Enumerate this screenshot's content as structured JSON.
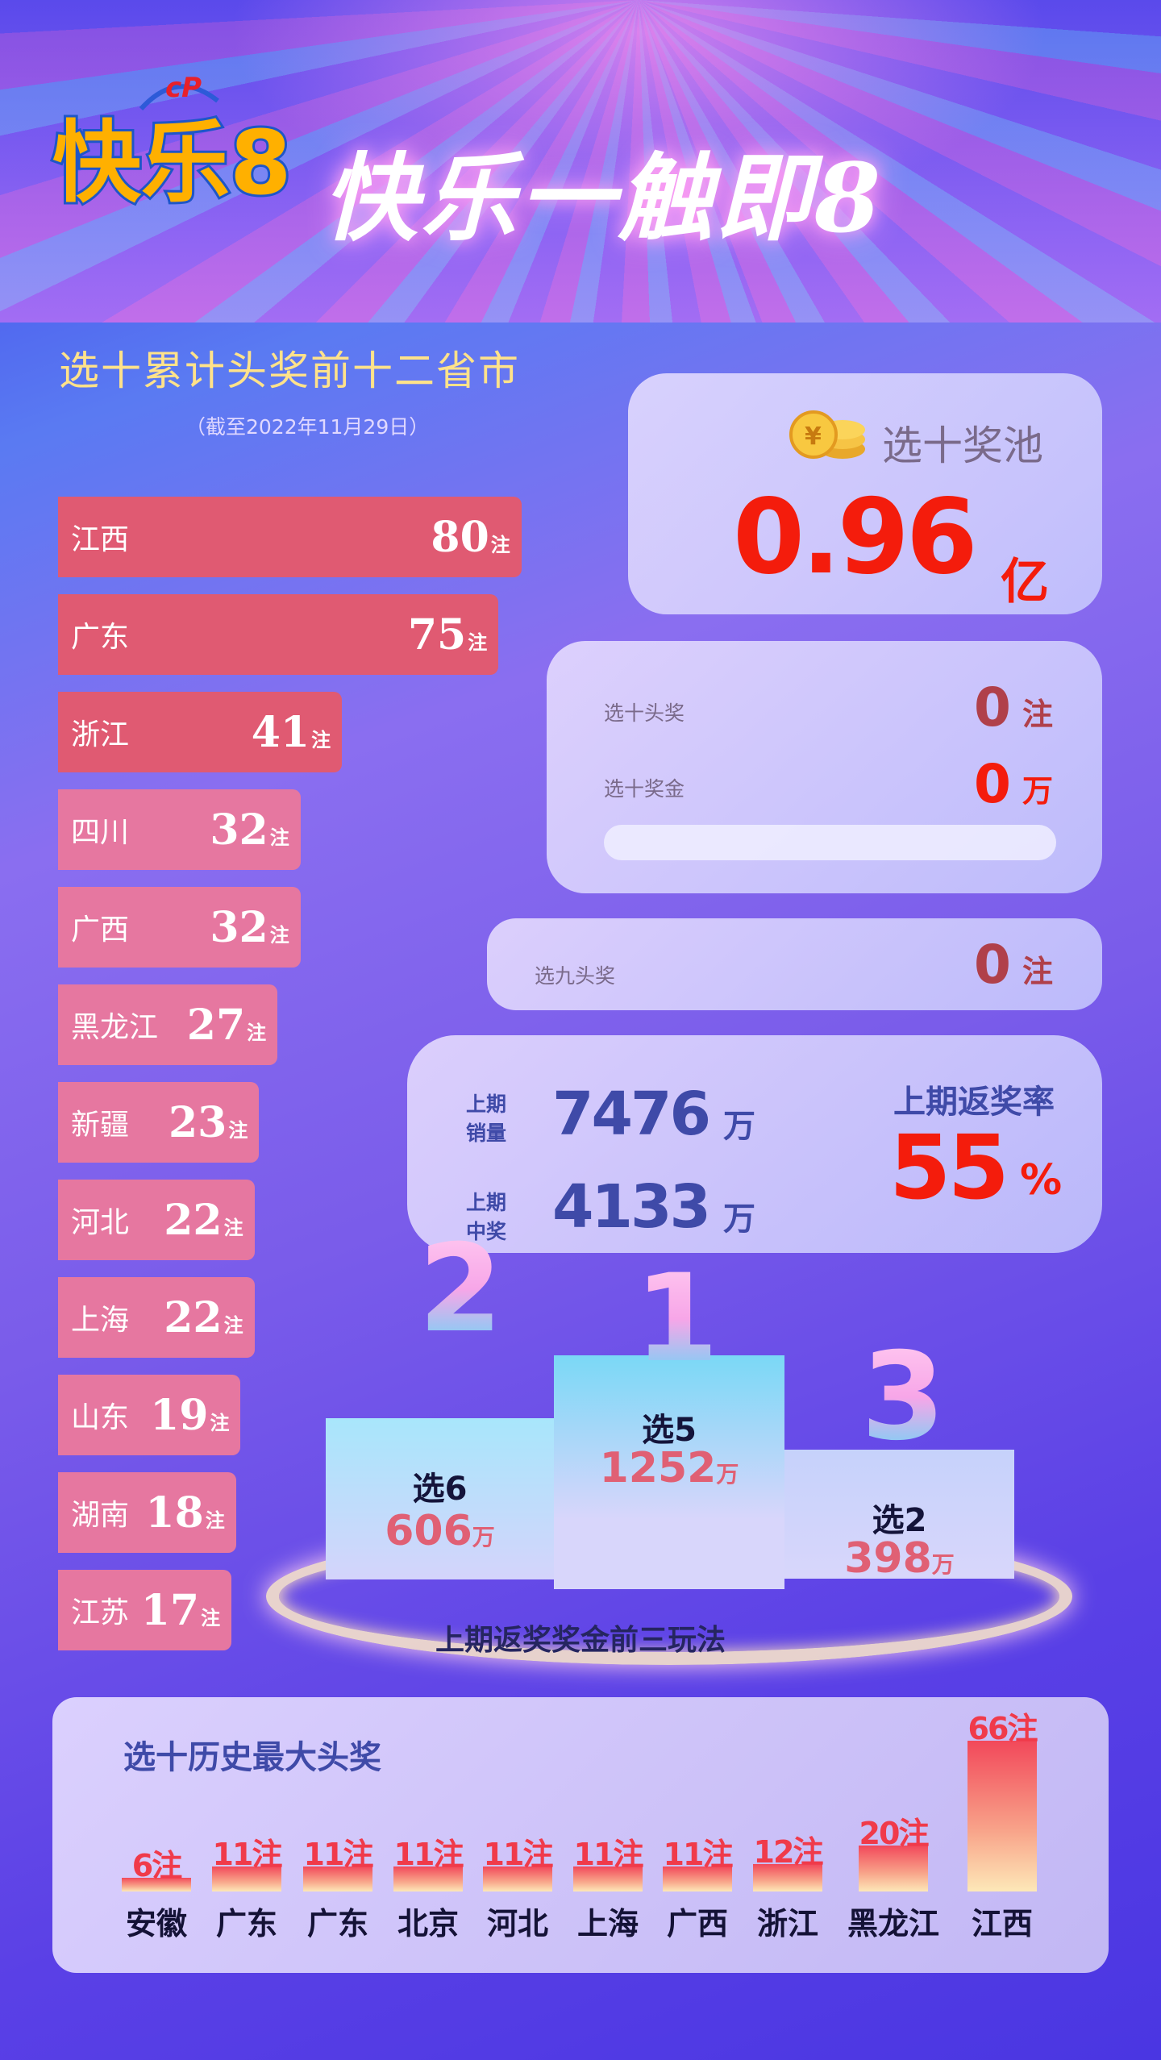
{
  "header": {
    "logo_text": "快乐8",
    "slogan": "快乐一触即8"
  },
  "provinces": {
    "title": "选十累计头奖前十二省市",
    "subtitle": "（截至2022年11月29日）",
    "unit": "注",
    "items": [
      {
        "name": "江西",
        "value": 80
      },
      {
        "name": "广东",
        "value": 75
      },
      {
        "name": "浙江",
        "value": 41
      },
      {
        "name": "四川",
        "value": 32
      },
      {
        "name": "广西",
        "value": 32
      },
      {
        "name": "黑龙江",
        "value": 27
      },
      {
        "name": "新疆",
        "value": 23
      },
      {
        "name": "河北",
        "value": 22
      },
      {
        "name": "上海",
        "value": 22
      },
      {
        "name": "山东",
        "value": 19
      },
      {
        "name": "湖南",
        "value": 18
      },
      {
        "name": "江苏",
        "value": 17
      }
    ]
  },
  "pool": {
    "label": "选十奖池",
    "value": "0.96",
    "unit": "亿",
    "icon": "coin-stack-icon"
  },
  "prizes": {
    "top10_label": "选十头奖",
    "top10_value": "0",
    "top10_unit": "注",
    "bonus10_label": "选十奖金",
    "bonus10_value": "0",
    "bonus10_unit": "万",
    "progress": 0,
    "top9_label": "选九头奖",
    "top9_value": "0",
    "top9_unit": "注"
  },
  "last": {
    "sales_label1": "上期",
    "sales_label2": "销量",
    "sales_value": "7476",
    "sales_unit": "万",
    "win_label1": "上期",
    "win_label2": "中奖",
    "win_value": "4133",
    "win_unit": "万",
    "rate_label": "上期返奖率",
    "rate_value": "55",
    "rate_unit": "%"
  },
  "podium": {
    "caption": "上期返奖奖金前三玩法",
    "unit": "万",
    "items": [
      {
        "rank": "1",
        "name": "选5",
        "value": "1252"
      },
      {
        "rank": "2",
        "name": "选6",
        "value": "606"
      },
      {
        "rank": "3",
        "name": "选2",
        "value": "398"
      }
    ]
  },
  "chart_data": {
    "type": "bar",
    "title": "选十历史最大头奖",
    "categories": [
      "安徽",
      "广东",
      "广东",
      "北京",
      "河北",
      "上海",
      "广西",
      "浙江",
      "黑龙江",
      "江西"
    ],
    "values": [
      6,
      11,
      11,
      11,
      11,
      11,
      11,
      12,
      20,
      66
    ],
    "unit": "注"
  },
  "colors": {
    "accent_red": "#f41c0c",
    "title_yellow": "#ffe28a",
    "navy": "#3f4aa8",
    "bar_top3": "#e05a72",
    "bar_rest": "#e677a0"
  }
}
